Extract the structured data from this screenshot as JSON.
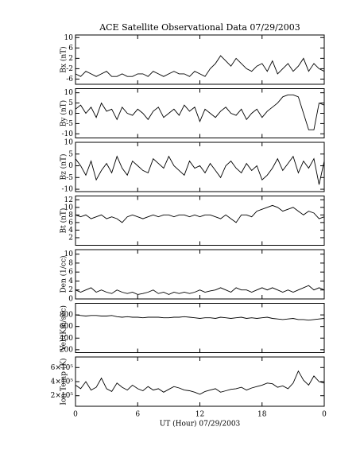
{
  "chart_data": [
    {
      "type": "line",
      "title": "ACE Satellite Observational Data   07/29/2003",
      "ylabel": "Bx (nT)",
      "color": "#000000",
      "x": [
        0,
        0.5,
        1,
        1.5,
        2,
        2.5,
        3,
        3.5,
        4,
        4.5,
        5,
        5.5,
        6,
        6.5,
        7,
        7.5,
        8,
        8.5,
        9,
        9.5,
        10,
        10.5,
        11,
        11.5,
        12,
        12.5,
        13,
        13.5,
        14,
        14.5,
        15,
        15.5,
        16,
        16.5,
        17,
        17.5,
        18,
        18.5,
        19,
        19.5,
        20,
        20.5,
        21,
        21.5,
        22,
        22.5,
        23,
        23.5,
        24
      ],
      "values": [
        -4,
        -5,
        -3,
        -4,
        -5,
        -4,
        -3,
        -5,
        -5,
        -4,
        -5,
        -5,
        -4,
        -4,
        -5,
        -3,
        -4,
        -5,
        -4,
        -3,
        -4,
        -4,
        -5,
        -3,
        -4,
        -5,
        -2,
        0,
        3,
        1,
        -1,
        2,
        0,
        -2,
        -3,
        -1,
        0,
        -3,
        1,
        -4,
        -2,
        0,
        -3,
        -1,
        2,
        -3,
        0,
        -2,
        -3
      ],
      "xlim": [
        0,
        24
      ],
      "ylim": [
        -8,
        11
      ],
      "yticks": [
        -6,
        -2,
        2,
        6,
        10
      ]
    },
    {
      "type": "line",
      "ylabel": "By (nT)",
      "color": "#000000",
      "x": [
        0,
        0.5,
        1,
        1.5,
        2,
        2.5,
        3,
        3.5,
        4,
        4.5,
        5,
        5.5,
        6,
        6.5,
        7,
        7.5,
        8,
        8.5,
        9,
        9.5,
        10,
        10.5,
        11,
        11.5,
        12,
        12.5,
        13,
        13.5,
        14,
        14.5,
        15,
        15.5,
        16,
        16.5,
        17,
        17.5,
        18,
        18.5,
        19,
        19.5,
        20,
        20.5,
        21,
        21.5,
        22,
        22.5,
        23,
        23.5,
        24
      ],
      "values": [
        2,
        4,
        0,
        3,
        -2,
        5,
        1,
        2,
        -3,
        3,
        0,
        -1,
        2,
        0,
        -3,
        1,
        3,
        -2,
        0,
        2,
        -1,
        4,
        1,
        3,
        -4,
        2,
        0,
        -2,
        1,
        3,
        0,
        -1,
        2,
        -3,
        0,
        2,
        -2,
        1,
        3,
        5,
        8,
        9,
        9,
        8,
        0,
        -8,
        -8,
        5,
        4
      ],
      "xlim": [
        0,
        24
      ],
      "ylim": [
        -12,
        12
      ],
      "yticks": [
        -10,
        -5,
        0,
        5,
        10
      ]
    },
    {
      "type": "line",
      "ylabel": "Bz (nT)",
      "color": "#000000",
      "x": [
        0,
        0.5,
        1,
        1.5,
        2,
        2.5,
        3,
        3.5,
        4,
        4.5,
        5,
        5.5,
        6,
        6.5,
        7,
        7.5,
        8,
        8.5,
        9,
        9.5,
        10,
        10.5,
        11,
        11.5,
        12,
        12.5,
        13,
        13.5,
        14,
        14.5,
        15,
        15.5,
        16,
        16.5,
        17,
        17.5,
        18,
        18.5,
        19,
        19.5,
        20,
        20.5,
        21,
        21.5,
        22,
        22.5,
        23,
        23.5,
        24
      ],
      "values": [
        3,
        0,
        -4,
        2,
        -6,
        -2,
        1,
        -3,
        4,
        -1,
        -4,
        2,
        0,
        -2,
        -3,
        3,
        1,
        -1,
        4,
        0,
        -2,
        -4,
        2,
        -1,
        0,
        -3,
        1,
        -2,
        -5,
        0,
        2,
        -1,
        -3,
        1,
        -2,
        0,
        -6,
        -4,
        -1,
        3,
        -2,
        1,
        4,
        -3,
        2,
        -1,
        3,
        -8,
        2
      ],
      "xlim": [
        0,
        24
      ],
      "ylim": [
        -11,
        10
      ],
      "yticks": [
        -10,
        -5,
        0,
        5,
        10
      ]
    },
    {
      "type": "line",
      "ylabel": "Bt (nT)",
      "color": "#000000",
      "x": [
        0,
        0.5,
        1,
        1.5,
        2,
        2.5,
        3,
        3.5,
        4,
        4.5,
        5,
        5.5,
        6,
        6.5,
        7,
        7.5,
        8,
        8.5,
        9,
        9.5,
        10,
        10.5,
        11,
        11.5,
        12,
        12.5,
        13,
        13.5,
        14,
        14.5,
        15,
        15.5,
        16,
        16.5,
        17,
        17.5,
        18,
        18.5,
        19,
        19.5,
        20,
        20.5,
        21,
        21.5,
        22,
        22.5,
        23,
        23.5,
        24
      ],
      "values": [
        8,
        7.5,
        8,
        7,
        7.5,
        8,
        7,
        7.5,
        7,
        6,
        7.5,
        8,
        7.5,
        7,
        7.5,
        8,
        7.5,
        8,
        8,
        7.5,
        8,
        8,
        7.5,
        8,
        7.5,
        8,
        8,
        7.5,
        7,
        8,
        7,
        6,
        8,
        8,
        7.5,
        9,
        9.5,
        10,
        10.5,
        10,
        9,
        9.5,
        10,
        9,
        8,
        9,
        8.5,
        7,
        7.5
      ],
      "xlim": [
        0,
        24
      ],
      "ylim": [
        0,
        13
      ],
      "yticks": [
        2,
        4,
        6,
        8,
        10,
        12
      ]
    },
    {
      "type": "line",
      "ylabel": "Den (1/cc)",
      "color": "#000000",
      "x": [
        0,
        0.5,
        1,
        1.5,
        2,
        2.5,
        3,
        3.5,
        4,
        4.5,
        5,
        5.5,
        6,
        6.5,
        7,
        7.5,
        8,
        8.5,
        9,
        9.5,
        10,
        10.5,
        11,
        11.5,
        12,
        12.5,
        13,
        13.5,
        14,
        14.5,
        15,
        15.5,
        16,
        16.5,
        17,
        17.5,
        18,
        18.5,
        19,
        19.5,
        20,
        20.5,
        21,
        21.5,
        22,
        22.5,
        23,
        23.5,
        24
      ],
      "values": [
        2,
        1.5,
        2,
        2.5,
        1.5,
        2,
        1.5,
        1.2,
        2,
        1.5,
        1.2,
        1.5,
        1,
        1.2,
        1.5,
        2,
        1.2,
        1.5,
        1,
        1.5,
        1.2,
        1.5,
        1.2,
        1.5,
        2,
        1.5,
        1.8,
        2,
        2.5,
        2,
        1.5,
        2.5,
        2,
        2,
        1.5,
        2,
        2.5,
        2,
        2.5,
        2,
        1.5,
        2,
        1.5,
        2,
        2.5,
        3,
        2,
        2.5,
        2
      ],
      "xlim": [
        0,
        24
      ],
      "ylim": [
        0,
        11
      ],
      "yticks": [
        0,
        2,
        4,
        6,
        8,
        10
      ]
    },
    {
      "type": "line",
      "ylabel": "Vel (Km/sec)",
      "color": "#000000",
      "x": [
        0,
        0.5,
        1,
        1.5,
        2,
        2.5,
        3,
        3.5,
        4,
        4.5,
        5,
        5.5,
        6,
        6.5,
        7,
        7.5,
        8,
        8.5,
        9,
        9.5,
        10,
        10.5,
        11,
        11.5,
        12,
        12.5,
        13,
        13.5,
        14,
        14.5,
        15,
        15.5,
        16,
        16.5,
        17,
        17.5,
        18,
        18.5,
        19,
        19.5,
        20,
        20.5,
        21,
        21.5,
        22,
        22.5,
        23,
        23.5,
        24
      ],
      "values": [
        800,
        790,
        780,
        790,
        790,
        780,
        780,
        790,
        770,
        760,
        770,
        760,
        760,
        750,
        760,
        760,
        760,
        750,
        750,
        760,
        760,
        770,
        760,
        750,
        740,
        750,
        750,
        740,
        760,
        750,
        740,
        750,
        760,
        740,
        750,
        740,
        750,
        760,
        740,
        730,
        720,
        730,
        740,
        720,
        720,
        710,
        720,
        730,
        740
      ],
      "xlim": [
        0,
        24
      ],
      "ylim": [
        150,
        1000
      ],
      "yticks": [
        200,
        400,
        600,
        800
      ]
    },
    {
      "type": "line",
      "ylabel": "Ion Temp (K)",
      "xlabel": "UT (Hour)  07/29/2003",
      "color": "#000000",
      "x": [
        0,
        0.5,
        1,
        1.5,
        2,
        2.5,
        3,
        3.5,
        4,
        4.5,
        5,
        5.5,
        6,
        6.5,
        7,
        7.5,
        8,
        8.5,
        9,
        9.5,
        10,
        10.5,
        11,
        11.5,
        12,
        12.5,
        13,
        13.5,
        14,
        14.5,
        15,
        15.5,
        16,
        16.5,
        17,
        17.5,
        18,
        18.5,
        19,
        19.5,
        20,
        20.5,
        21,
        21.5,
        22,
        22.5,
        23,
        23.5,
        24
      ],
      "values": [
        350000,
        300000,
        400000,
        280000,
        320000,
        450000,
        300000,
        260000,
        380000,
        320000,
        280000,
        350000,
        300000,
        270000,
        330000,
        280000,
        300000,
        250000,
        290000,
        330000,
        310000,
        280000,
        270000,
        250000,
        220000,
        260000,
        280000,
        300000,
        250000,
        270000,
        290000,
        300000,
        320000,
        280000,
        310000,
        330000,
        350000,
        380000,
        370000,
        320000,
        340000,
        300000,
        380000,
        550000,
        420000,
        350000,
        480000,
        400000,
        380000
      ],
      "xlim": [
        0,
        24
      ],
      "ylim": [
        50000,
        750000
      ],
      "yticks": [
        {
          "value": 200000,
          "label": "2×10⁵"
        },
        {
          "value": 400000,
          "label": "4×10⁵"
        },
        {
          "value": 600000,
          "label": "6×10⁵"
        }
      ],
      "xticks": [
        0,
        6,
        12,
        18,
        {
          "value": 24,
          "label": "0"
        }
      ]
    }
  ]
}
